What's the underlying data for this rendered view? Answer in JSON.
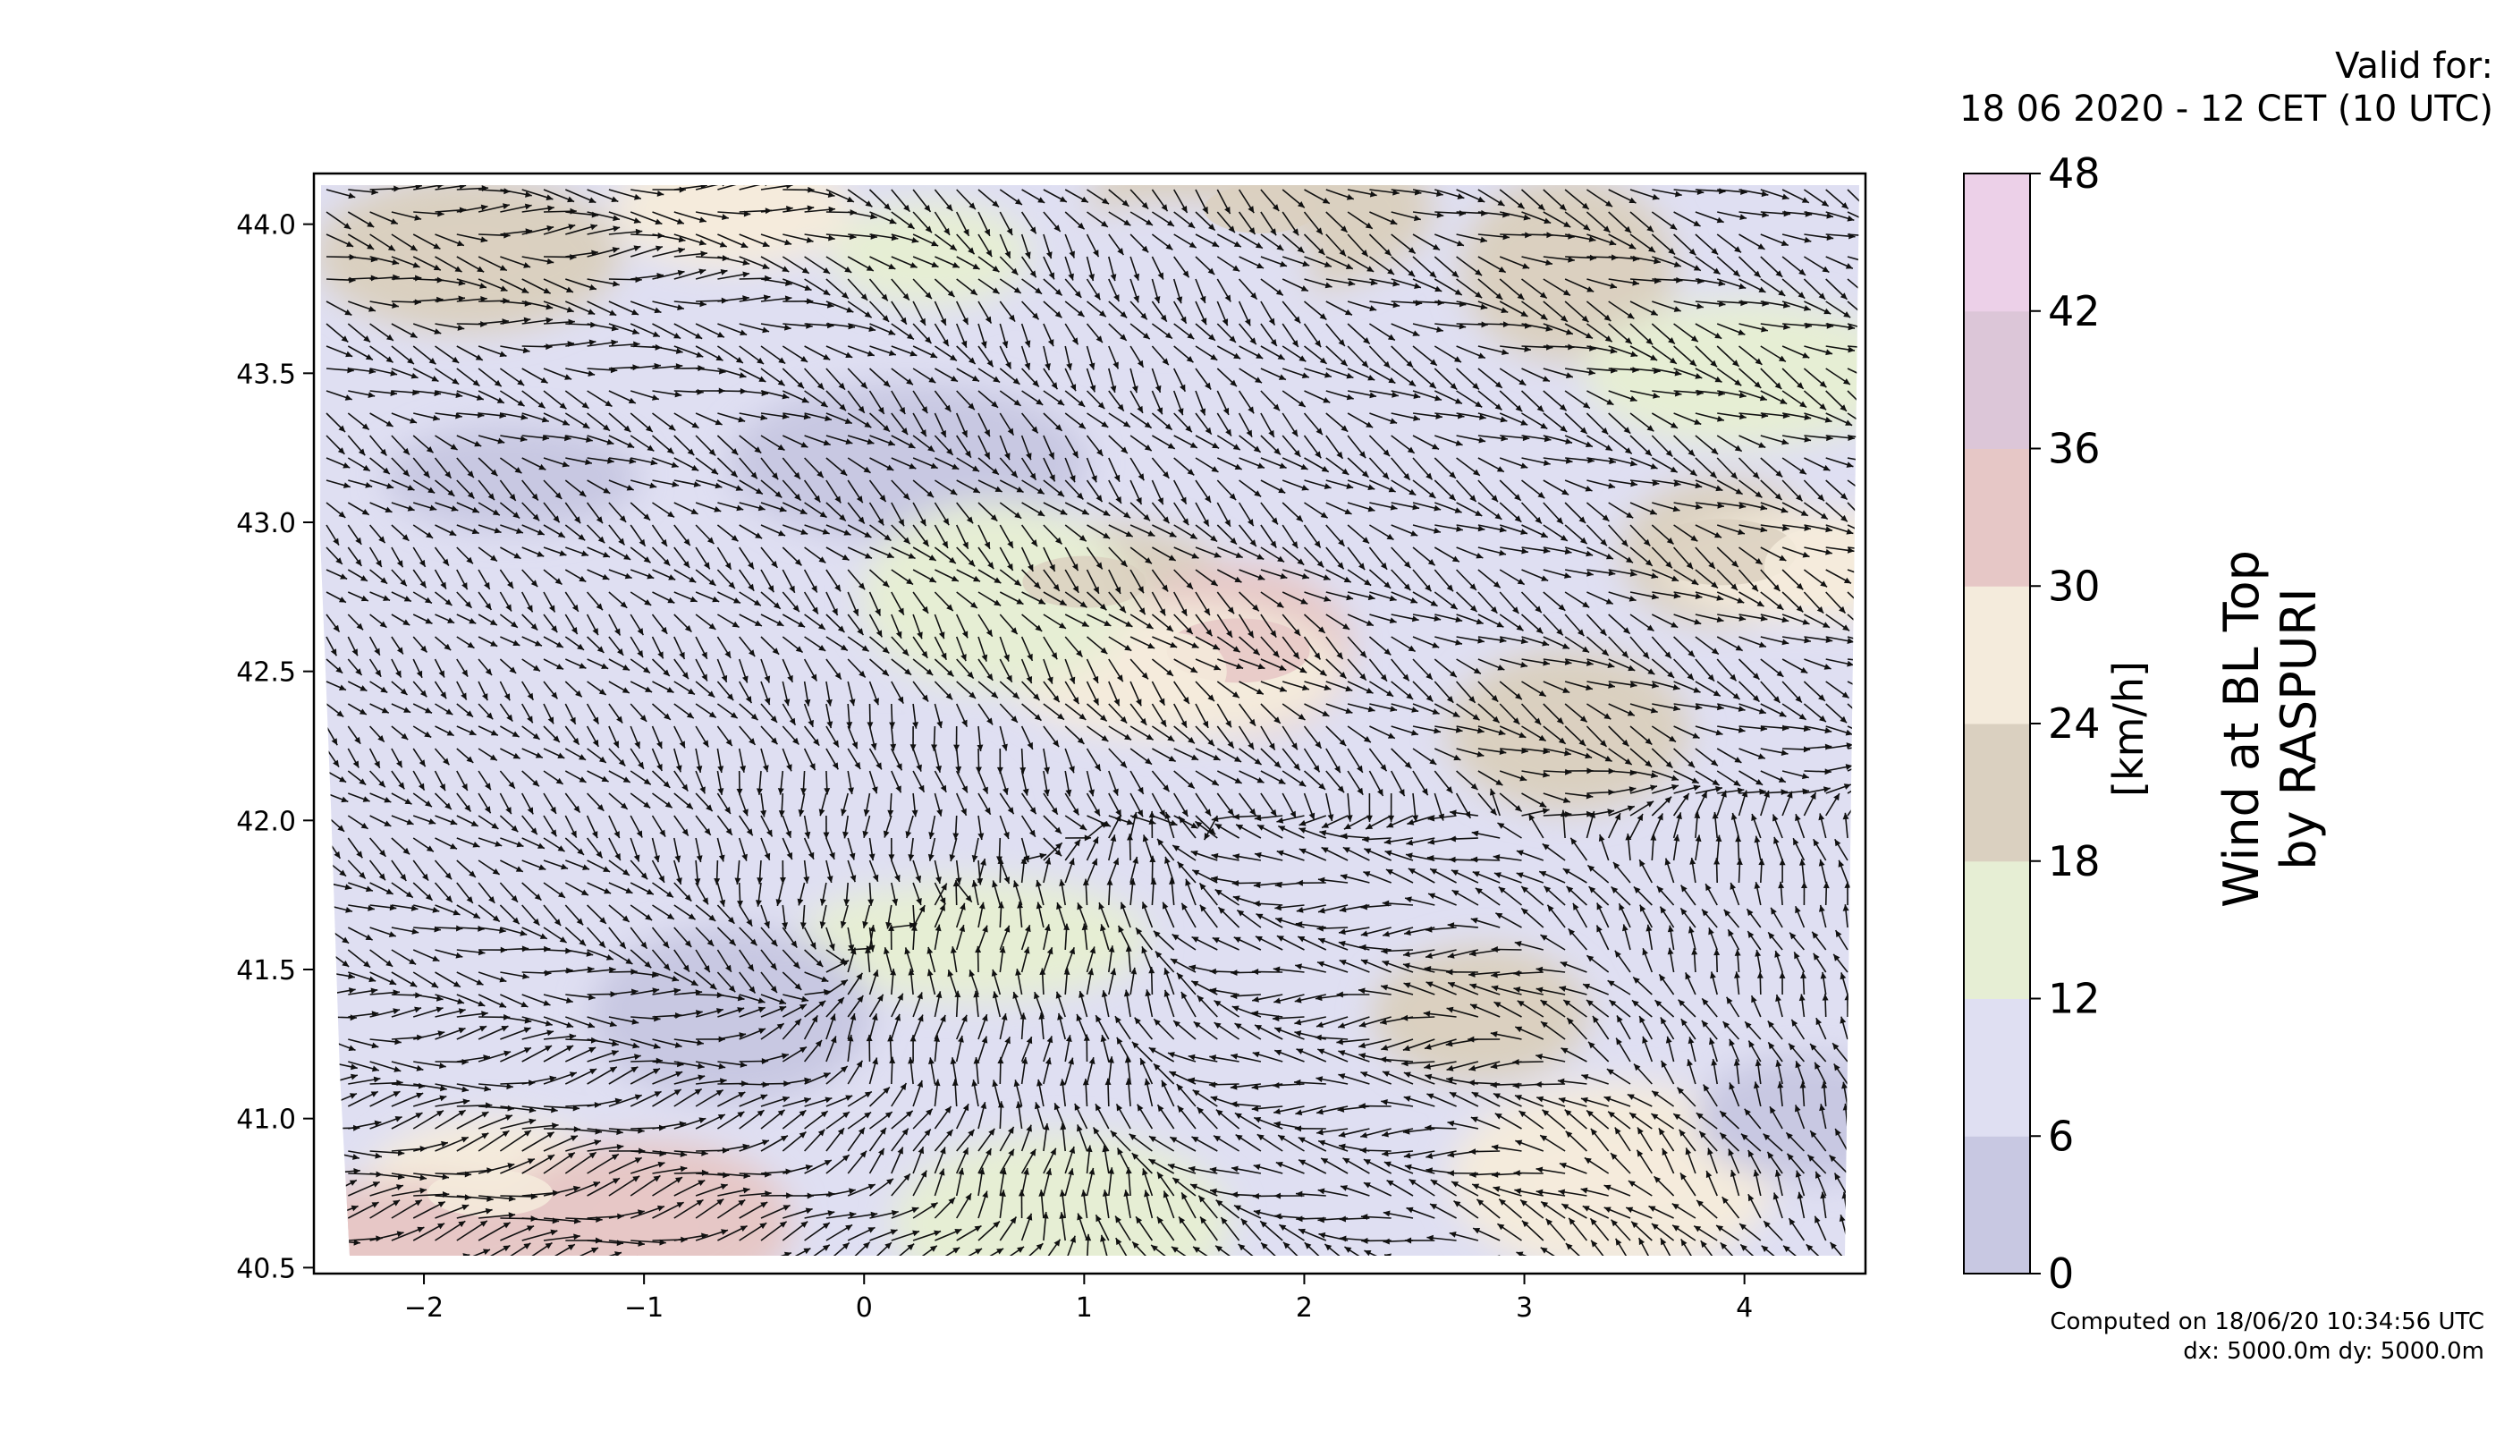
{
  "header": {
    "valid_for": "Valid for:",
    "valid_time": "18 06 2020 - 12 CET (10 UTC)"
  },
  "footer": {
    "computed": "Computed on 18/06/20 10:34:56 UTC",
    "grid": "dx: 5000.0m dy: 5000.0m"
  },
  "side_title": {
    "line1": "Wind at BL Top",
    "line2": "by RASPURI"
  },
  "chart_data": {
    "type": "heatmap",
    "description_variable": "wind speed at boundary layer top with direction arrows",
    "xlim": [
      -2.5,
      4.55
    ],
    "ylim": [
      40.48,
      44.17
    ],
    "x_ticks": [
      -2,
      -1,
      0,
      1,
      2,
      3,
      4
    ],
    "x_tick_labels": [
      "−2",
      "−1",
      "0",
      "1",
      "2",
      "3",
      "4"
    ],
    "y_ticks": [
      40.5,
      41.0,
      41.5,
      42.0,
      42.5,
      43.0,
      43.5,
      44.0
    ],
    "y_tick_labels": [
      "40.5",
      "41.0",
      "41.5",
      "42.0",
      "42.5",
      "43.0",
      "43.5",
      "44.0"
    ],
    "colorbar": {
      "label": "[km/h]",
      "levels": [
        0,
        6,
        12,
        18,
        24,
        30,
        36,
        42,
        48
      ],
      "level_labels": [
        "0",
        "6",
        "12",
        "18",
        "24",
        "30",
        "36",
        "42",
        "48"
      ],
      "colors": [
        "#c8c8e2",
        "#dfdff2",
        "#e6eed4",
        "#dad0c0",
        "#f4ebdc",
        "#e6c7c6",
        "#dcc6d8",
        "#ecd0e8"
      ]
    },
    "speed_regions": [
      {
        "x": 0.3,
        "y": 43.9,
        "value": 17
      },
      {
        "x": -1.8,
        "y": 43.9,
        "value": 20
      },
      {
        "x": -0.6,
        "y": 44.05,
        "value": 25
      },
      {
        "x": 1.8,
        "y": 44.05,
        "value": 20
      },
      {
        "x": 1.4,
        "y": 43.85,
        "value": 10
      },
      {
        "x": 3.2,
        "y": 43.85,
        "value": 20
      },
      {
        "x": 4.0,
        "y": 43.5,
        "value": 15
      },
      {
        "x": -1.6,
        "y": 43.15,
        "value": 4
      },
      {
        "x": 0.2,
        "y": 43.2,
        "value": 4
      },
      {
        "x": 1.0,
        "y": 42.8,
        "value": 20
      },
      {
        "x": 1.7,
        "y": 42.57,
        "value": 33
      },
      {
        "x": 1.4,
        "y": 42.5,
        "value": 24
      },
      {
        "x": 0.6,
        "y": 42.75,
        "value": 15
      },
      {
        "x": 3.9,
        "y": 42.9,
        "value": 20
      },
      {
        "x": 4.35,
        "y": 42.85,
        "value": 26
      },
      {
        "x": 3.2,
        "y": 42.3,
        "value": 20
      },
      {
        "x": 0.5,
        "y": 41.6,
        "value": 14
      },
      {
        "x": -0.6,
        "y": 41.35,
        "value": 4
      },
      {
        "x": 2.8,
        "y": 41.35,
        "value": 20
      },
      {
        "x": 3.4,
        "y": 40.8,
        "value": 26
      },
      {
        "x": -1.7,
        "y": 40.75,
        "value": 26
      },
      {
        "x": -2.1,
        "y": 40.6,
        "value": 32
      },
      {
        "x": -1.0,
        "y": 40.65,
        "value": 30
      },
      {
        "x": 4.3,
        "y": 41.0,
        "value": 4
      },
      {
        "x": 0.9,
        "y": 40.65,
        "value": 16
      },
      {
        "x": 0.0,
        "y": 42.0,
        "value": 8
      }
    ],
    "wind_flow": [
      {
        "x": -1.0,
        "y": 44.0,
        "dir_deg": 0,
        "speed": 20
      },
      {
        "x": 1.0,
        "y": 43.7,
        "dir_deg": -60,
        "speed": 10
      },
      {
        "x": 2.8,
        "y": 43.8,
        "dir_deg": -20,
        "speed": 18
      },
      {
        "x": -2.0,
        "y": 42.5,
        "dir_deg": -45,
        "speed": 6
      },
      {
        "x": 0.0,
        "y": 41.9,
        "dir_deg": -90,
        "speed": 8
      },
      {
        "x": 0.5,
        "y": 41.5,
        "dir_deg": 90,
        "speed": 12
      },
      {
        "x": 2.5,
        "y": 41.3,
        "dir_deg": 180,
        "speed": 20
      },
      {
        "x": 4.2,
        "y": 41.5,
        "dir_deg": 110,
        "speed": 8
      },
      {
        "x": 3.8,
        "y": 42.6,
        "dir_deg": -30,
        "speed": 15
      },
      {
        "x": -1.5,
        "y": 40.8,
        "dir_deg": 15,
        "speed": 24
      }
    ]
  }
}
